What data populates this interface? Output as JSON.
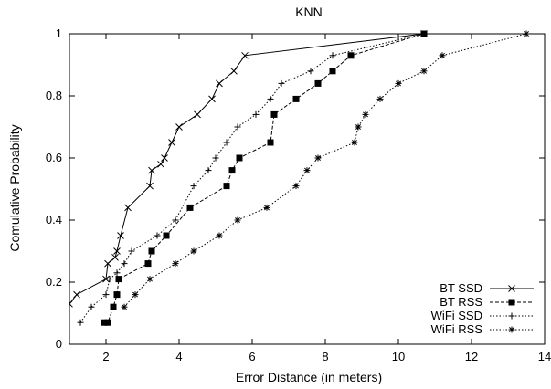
{
  "chart_data": {
    "type": "line",
    "title": "KNN",
    "xlabel": "Error Distance (in meters)",
    "ylabel": "Comulative Probability",
    "xlim": [
      1,
      14
    ],
    "ylim": [
      0,
      1
    ],
    "x_ticks": [
      "2",
      "4",
      "6",
      "8",
      "10",
      "12",
      "14"
    ],
    "y_ticks": [
      "0",
      "0.2",
      "0.4",
      "0.6",
      "0.8",
      "1"
    ],
    "grid": false,
    "legend_position": "bottom-right",
    "series": [
      {
        "name": "BT SSD",
        "marker": "x",
        "line_style": "solid",
        "x": [
          1.0,
          1.2,
          2.0,
          2.05,
          2.25,
          2.3,
          2.4,
          2.6,
          3.2,
          3.25,
          3.5,
          3.6,
          3.8,
          4.0,
          4.5,
          4.9,
          5.1,
          5.5,
          5.8,
          10.7
        ],
        "y": [
          0.13,
          0.16,
          0.21,
          0.26,
          0.28,
          0.3,
          0.35,
          0.44,
          0.51,
          0.56,
          0.58,
          0.6,
          0.65,
          0.7,
          0.74,
          0.79,
          0.84,
          0.88,
          0.93,
          1.0
        ]
      },
      {
        "name": "BT RSS",
        "marker": "square",
        "line_style": "dashed",
        "x": [
          1.95,
          2.05,
          2.2,
          2.3,
          2.35,
          3.15,
          3.25,
          3.65,
          4.3,
          5.3,
          5.45,
          5.65,
          6.5,
          6.6,
          7.2,
          7.8,
          8.2,
          8.7,
          10.7
        ],
        "y": [
          0.07,
          0.07,
          0.12,
          0.16,
          0.21,
          0.26,
          0.3,
          0.35,
          0.44,
          0.51,
          0.56,
          0.6,
          0.65,
          0.74,
          0.79,
          0.84,
          0.88,
          0.93,
          1.0
        ]
      },
      {
        "name": "WiFi SSD",
        "marker": "plus",
        "line_style": "dotted",
        "x": [
          1.3,
          1.6,
          2.0,
          2.1,
          2.3,
          2.5,
          2.7,
          3.4,
          3.9,
          4.4,
          4.8,
          5.0,
          5.3,
          5.6,
          6.1,
          6.5,
          6.8,
          7.6,
          8.2,
          10.7
        ],
        "y": [
          0.07,
          0.12,
          0.16,
          0.21,
          0.23,
          0.26,
          0.3,
          0.35,
          0.4,
          0.51,
          0.56,
          0.6,
          0.65,
          0.7,
          0.74,
          0.79,
          0.84,
          0.88,
          0.93,
          1.0
        ]
      },
      {
        "name": "WiFi RSS",
        "marker": "asterisk",
        "line_style": "dotted",
        "x": [
          2.5,
          2.8,
          3.2,
          3.9,
          4.4,
          5.1,
          5.6,
          6.4,
          7.2,
          7.5,
          7.8,
          8.8,
          8.9,
          9.1,
          9.5,
          10.0,
          10.7,
          11.2,
          13.5
        ],
        "y": [
          0.12,
          0.16,
          0.21,
          0.26,
          0.3,
          0.35,
          0.4,
          0.44,
          0.51,
          0.56,
          0.6,
          0.65,
          0.7,
          0.74,
          0.79,
          0.84,
          0.88,
          0.93,
          1.0
        ]
      }
    ]
  }
}
